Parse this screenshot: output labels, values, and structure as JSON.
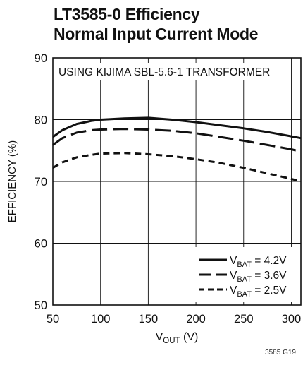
{
  "title_line1": "LT3585-0 Efficiency",
  "title_line2": "Normal Input Current Mode",
  "figure_code": "3585 G19",
  "chart_data": {
    "type": "line",
    "xlabel": {
      "main": "V",
      "sub": "OUT",
      "suffix": " (V)"
    },
    "ylabel": "EFFICIENCY (%)",
    "xlim": [
      50,
      310
    ],
    "ylim": [
      50,
      90
    ],
    "x_ticks": [
      50,
      100,
      150,
      200,
      250,
      300
    ],
    "y_ticks": [
      50,
      60,
      70,
      80,
      90
    ],
    "grid": true,
    "annotation": "USING KIJIMA SBL-5.6-1 TRANSFORMER",
    "legend_position": "bottom-right",
    "series": [
      {
        "label_main": "V",
        "label_sub": "BAT",
        "label_suffix": " = 4.2V",
        "style": "solid",
        "x": [
          50,
          60,
          75,
          90,
          100,
          125,
          150,
          175,
          200,
          225,
          250,
          275,
          300,
          310
        ],
        "y": [
          77.2,
          78.3,
          79.3,
          79.8,
          80.0,
          80.2,
          80.3,
          80.0,
          79.6,
          79.1,
          78.6,
          78.0,
          77.3,
          77.0
        ]
      },
      {
        "label_main": "V",
        "label_sub": "BAT",
        "label_suffix": " = 3.6V",
        "style": "dashed",
        "x": [
          50,
          60,
          75,
          90,
          100,
          125,
          150,
          175,
          200,
          225,
          250,
          275,
          300,
          310
        ],
        "y": [
          75.9,
          77.0,
          77.9,
          78.3,
          78.4,
          78.5,
          78.4,
          78.2,
          77.8,
          77.2,
          76.6,
          75.9,
          75.2,
          74.8
        ]
      },
      {
        "label_main": "V",
        "label_sub": "BAT",
        "label_suffix": " = 2.5V",
        "style": "short-dashed",
        "x": [
          50,
          60,
          75,
          90,
          100,
          125,
          150,
          175,
          200,
          225,
          250,
          275,
          300,
          310
        ],
        "y": [
          72.2,
          73.1,
          73.9,
          74.3,
          74.5,
          74.6,
          74.4,
          74.1,
          73.6,
          73.0,
          72.2,
          71.3,
          70.4,
          70.0
        ]
      }
    ]
  }
}
